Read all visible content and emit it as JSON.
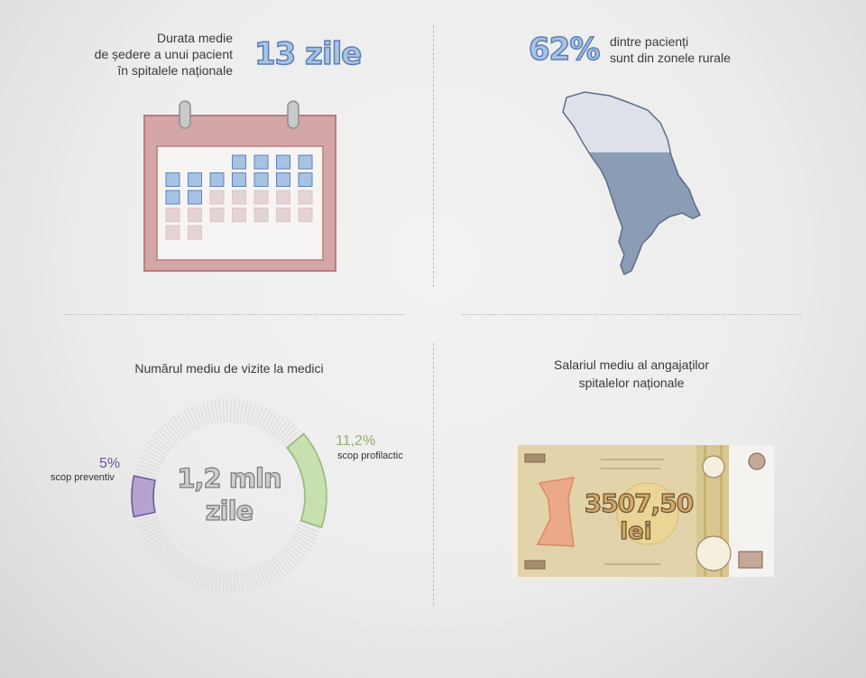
{
  "stay": {
    "label_lines": [
      "Durata medie",
      "de ședere a unui pacient",
      "în spitalele naționale"
    ],
    "value": "13 zile",
    "days_highlighted": 13,
    "days_total": 27,
    "colors": {
      "frame": "#c99a9b",
      "highlight": "#a7c3e3",
      "empty": "#e4d4d4"
    }
  },
  "rural": {
    "value": "62%",
    "label_lines": [
      "dintre pacienți",
      "sunt din zonele rurale"
    ],
    "share": 0.62,
    "colors": {
      "rural": "#8b9db4",
      "urban": "#dde2ea"
    }
  },
  "visits": {
    "title": "Numărul mediu de vizite la medici",
    "center_lines": [
      "1,2 mln",
      "zile"
    ],
    "segments": [
      {
        "pct": "11,2%",
        "value": 11.2,
        "label": "scop profilactic",
        "color": "#c8dfb0"
      },
      {
        "pct": "5%",
        "value": 5,
        "label": "scop preventiv",
        "color": "#b4a3cf"
      }
    ]
  },
  "salary": {
    "title_lines": [
      "Salariul mediu al angajaților",
      "spitalelor naționale"
    ],
    "amount": "3507,50",
    "currency": "lei"
  }
}
